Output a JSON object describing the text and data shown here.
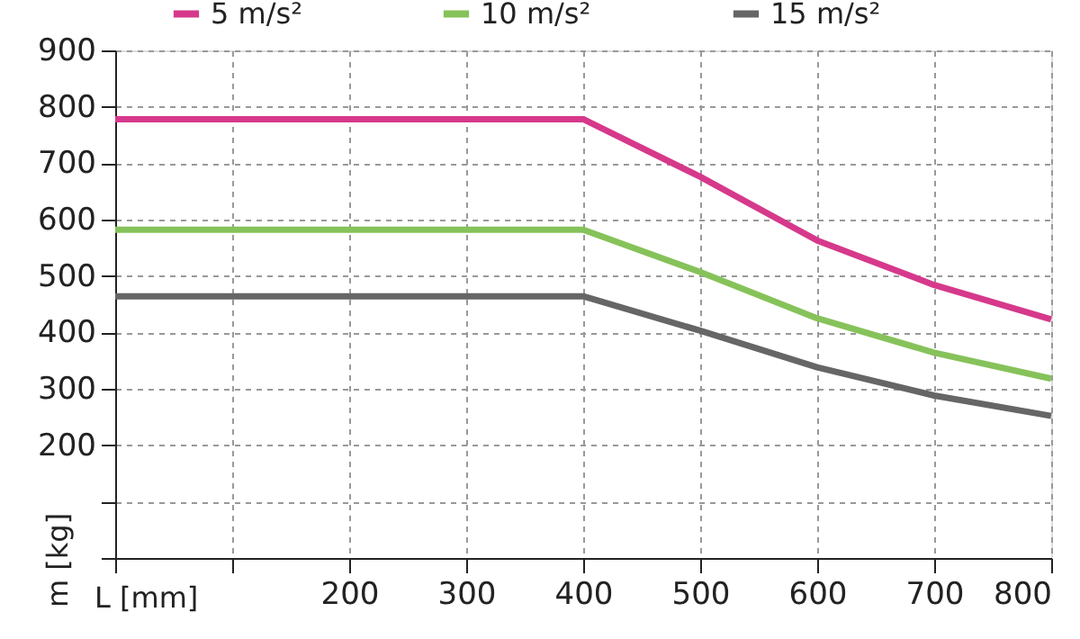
{
  "chart_data": {
    "type": "line",
    "xlabel": "L [mm]",
    "ylabel": "m [kg]",
    "xlim": [
      0,
      800
    ],
    "ylim": [
      0,
      900
    ],
    "xticks": [
      {
        "value": 0,
        "label": null
      },
      {
        "value": 100,
        "label": null
      },
      200,
      300,
      400,
      500,
      600,
      700,
      800
    ],
    "yticks": [
      {
        "value": 0,
        "label": null
      },
      {
        "value": 100,
        "label": null
      },
      200,
      300,
      400,
      500,
      600,
      700,
      800,
      900
    ],
    "x": [
      0,
      400,
      500,
      600,
      700,
      800
    ],
    "series": [
      {
        "name": "5 m/s²",
        "color": "#d6398b",
        "values": [
          778,
          778,
          676,
          563,
          484,
          423
        ]
      },
      {
        "name": "10 m/s²",
        "color": "#86c25a",
        "values": [
          582,
          582,
          507,
          425,
          364,
          318
        ]
      },
      {
        "name": "15 m/s²",
        "color": "#666666",
        "values": [
          464,
          464,
          403,
          338,
          288,
          252
        ]
      }
    ],
    "grid": true,
    "legend": "top",
    "marker": "none",
    "line_style": "solid"
  }
}
